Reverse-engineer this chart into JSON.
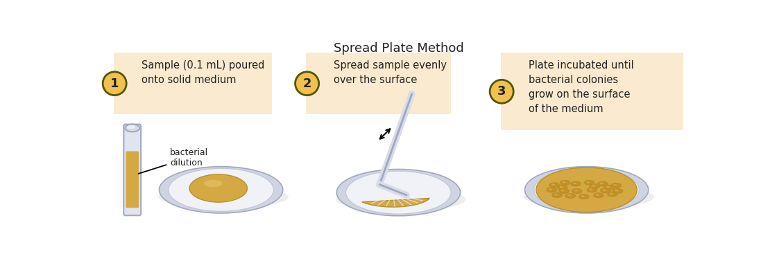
{
  "title": "Spread Plate Method",
  "title_fontsize": 13,
  "background_color": "#ffffff",
  "box_color": "#faebd0",
  "box_edge_color": "#d4a843",
  "step_labels": [
    "Sample (0.1 mL) poured\nonto solid medium",
    "Spread sample evenly\nover the surface",
    "Plate incubated until\nbacterial colonies\ngrow on the surface\nof the medium"
  ],
  "step_numbers": [
    "1",
    "2",
    "3"
  ],
  "annotation_label": "bacterial\ndilution",
  "plate_agar_color": "#d4a843",
  "plate_agar_light": "#e8c46a",
  "plate_rim_color": "#d0d4e0",
  "plate_rim_edge": "#a0a8c0",
  "plate_inner_color": "#eaecf4",
  "colony_fill": "#d4a843",
  "colony_edge": "#b8902a",
  "tube_liquid_color": "#d4a843",
  "tube_glass_color": "#e0e4f0",
  "tube_glass_edge": "#a0a8c0",
  "spreader_color": "#d8dce8",
  "spreader_edge": "#a0a8c0",
  "number_circle_fill": "#f0c050",
  "number_circle_edge": "#555500",
  "text_color": "#222222",
  "arrow_color": "#111111"
}
